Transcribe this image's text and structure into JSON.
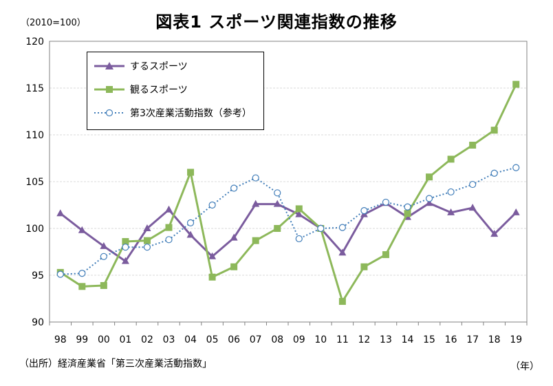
{
  "title": "図表1 スポーツ関連指数の推移",
  "unit_label": "（2010=100）",
  "source": "（出所）経済産業省「第三次産業活動指数」",
  "year_unit": "（年）",
  "colors": {
    "do_sports": "#7B5C9E",
    "watch_sports": "#8DB85A",
    "tertiary": "#3F7CB8",
    "grid": "#d9d9d9"
  },
  "chart_data": {
    "type": "line",
    "categories": [
      "98",
      "99",
      "00",
      "01",
      "02",
      "03",
      "04",
      "05",
      "06",
      "07",
      "08",
      "09",
      "10",
      "11",
      "12",
      "13",
      "14",
      "15",
      "16",
      "17",
      "18",
      "19"
    ],
    "ylim": [
      90,
      120
    ],
    "yticks": [
      90,
      95,
      100,
      105,
      110,
      115,
      120
    ],
    "legend_position": "top-left",
    "grid": true,
    "series": [
      {
        "name": "するスポーツ",
        "marker": "triangle",
        "style": "solid",
        "values": [
          101.6,
          99.8,
          98.1,
          96.5,
          100.0,
          102.0,
          99.3,
          97.0,
          99.0,
          102.6,
          102.6,
          101.5,
          100.0,
          97.4,
          101.5,
          102.7,
          101.2,
          102.7,
          101.7,
          102.2,
          99.4,
          101.7
        ]
      },
      {
        "name": "観るスポーツ",
        "marker": "square",
        "style": "solid",
        "values": [
          95.3,
          93.8,
          93.9,
          98.6,
          98.7,
          100.1,
          106.0,
          94.8,
          95.9,
          98.7,
          100.0,
          102.1,
          100.0,
          92.2,
          95.9,
          97.2,
          101.6,
          105.5,
          107.4,
          108.9,
          110.5,
          115.4
        ]
      },
      {
        "name": "第3次産業活動指数（参考）",
        "marker": "circle",
        "style": "dotted",
        "values": [
          95.1,
          95.2,
          97.0,
          98.0,
          98.0,
          98.8,
          100.6,
          102.5,
          104.3,
          105.4,
          103.8,
          98.9,
          100.0,
          100.1,
          101.9,
          102.8,
          102.3,
          103.2,
          103.9,
          104.7,
          105.9,
          106.5
        ]
      }
    ]
  }
}
